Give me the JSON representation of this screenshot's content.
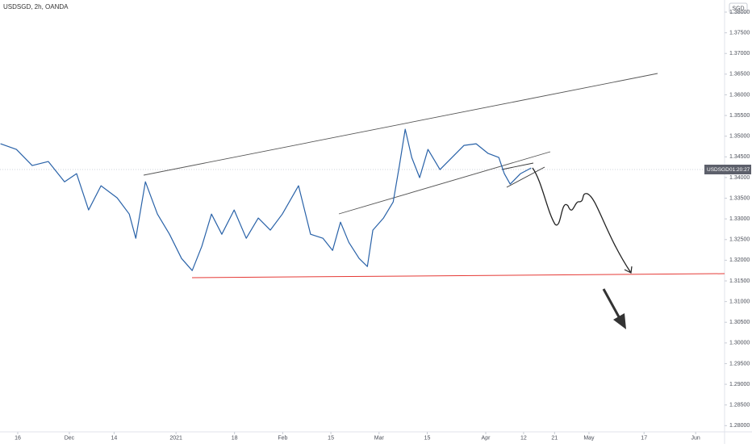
{
  "chart_data": {
    "type": "line",
    "title": "USDSGD, 2h, OANDA",
    "currency": "SGD",
    "countdown": "01:20:27",
    "series": [
      {
        "name": "USDSGD",
        "color": "#2962a8",
        "x": [
          10,
          14.6,
          19.2,
          23.9,
          28.6,
          32.1,
          35.6,
          39.2,
          43.9,
          47.4,
          49.3,
          52.1,
          55.6,
          59.1,
          62.6,
          65.7,
          68.5,
          71.3,
          74.3,
          77.9,
          81.4,
          84.9,
          88.4,
          91.9,
          96.6,
          100.1,
          103.7,
          106.5,
          108.8,
          111.2,
          114.2,
          116.6,
          118.2,
          121.3,
          124.1,
          125.9,
          127.6,
          129.5,
          131.8,
          134.2,
          137.7,
          141.2,
          144.7,
          148.2,
          151.7,
          154.8,
          156.4,
          158.1,
          161.1,
          164.2
        ],
        "values": [
          1.34816,
          1.3468,
          1.34289,
          1.34387,
          1.33898,
          1.34094,
          1.33215,
          1.33801,
          1.33508,
          1.33117,
          1.32531,
          1.33898,
          1.33117,
          1.32629,
          1.32043,
          1.3175,
          1.32336,
          1.33117,
          1.32629,
          1.33215,
          1.32531,
          1.3302,
          1.32727,
          1.33117,
          1.33801,
          1.32629,
          1.32531,
          1.32238,
          1.32922,
          1.32434,
          1.32043,
          1.31848,
          1.32727,
          1.3302,
          1.3341,
          1.34289,
          1.35168,
          1.34484,
          1.33996,
          1.3468,
          1.34191,
          1.34484,
          1.34777,
          1.34816,
          1.34582,
          1.34484,
          1.34094,
          1.3384,
          1.34094,
          1.3423
        ]
      }
    ],
    "xlim": [
      9.85,
      220.4
    ],
    "xticks": [
      {
        "value": 15,
        "label": "16"
      },
      {
        "value": 30,
        "label": "Dec"
      },
      {
        "value": 43,
        "label": "14"
      },
      {
        "value": 61,
        "label": "2021"
      },
      {
        "value": 78,
        "label": "18"
      },
      {
        "value": 92,
        "label": "Feb"
      },
      {
        "value": 106,
        "label": "15"
      },
      {
        "value": 120,
        "label": "Mar"
      },
      {
        "value": 134,
        "label": "15"
      },
      {
        "value": 151,
        "label": "Apr"
      },
      {
        "value": 162,
        "label": "12"
      },
      {
        "value": 171,
        "label": "21"
      },
      {
        "value": 181,
        "label": "May"
      },
      {
        "value": 197,
        "label": "17"
      },
      {
        "value": 212,
        "label": "Jun"
      }
    ],
    "ylim": [
      1.2785,
      1.38293
    ],
    "yticks": [
      {
        "value": 1.28,
        "label": "1.28000"
      },
      {
        "value": 1.285,
        "label": "1.28500"
      },
      {
        "value": 1.29,
        "label": "1.29000"
      },
      {
        "value": 1.295,
        "label": "1.29500"
      },
      {
        "value": 1.3,
        "label": "1.30000"
      },
      {
        "value": 1.305,
        "label": "1.30500"
      },
      {
        "value": 1.31,
        "label": "1.31000"
      },
      {
        "value": 1.315,
        "label": "1.31500"
      },
      {
        "value": 1.32,
        "label": "1.32000"
      },
      {
        "value": 1.325,
        "label": "1.32500"
      },
      {
        "value": 1.33,
        "label": "1.33000"
      },
      {
        "value": 1.335,
        "label": "1.33500"
      },
      {
        "value": 1.34,
        "label": "1.34000"
      },
      {
        "value": 1.345,
        "label": "1.34500"
      },
      {
        "value": 1.35,
        "label": "1.35000"
      },
      {
        "value": 1.355,
        "label": "1.35500"
      },
      {
        "value": 1.36,
        "label": "1.36000"
      },
      {
        "value": 1.365,
        "label": "1.36500"
      },
      {
        "value": 1.37,
        "label": "1.37000"
      },
      {
        "value": 1.375,
        "label": "1.37500"
      },
      {
        "value": 1.38,
        "label": "1.38000"
      }
    ]
  }
}
